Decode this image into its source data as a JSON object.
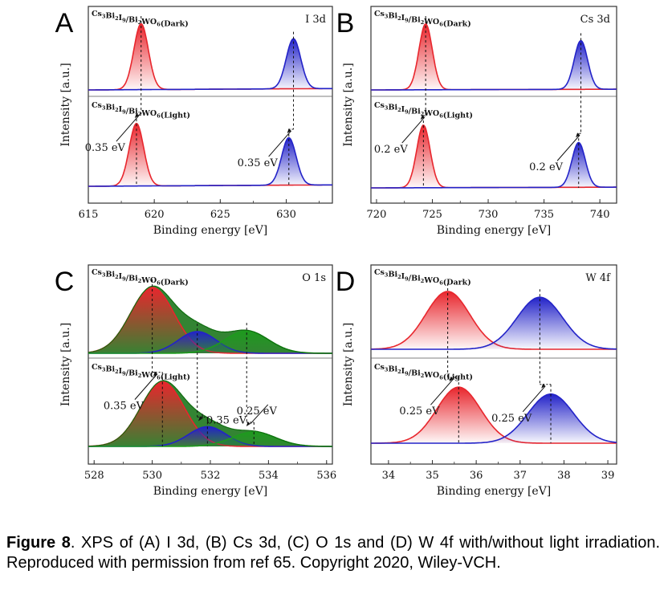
{
  "figure": {
    "caption_label": "Figure 8",
    "caption_text": ". XPS of (A) I 3d, (B) Cs 3d, (C) O 1s and (D) W 4f with/without light irradiation. Reproduced with permission from ref 65. Copyright 2020, Wiley-VCH."
  },
  "colors": {
    "red": "#e8262d",
    "blue": "#2323c8",
    "green": "#1e9a1e",
    "dark_green": "#0f6e0f",
    "axis": "#333333"
  },
  "chart_data": [
    {
      "panel": "A",
      "type": "line",
      "element_label": "I 3d",
      "xlabel": "Binding energy [eV]",
      "ylabel": "Intensity [a.u.]",
      "xlim": [
        615,
        633.5
      ],
      "xticks": [
        615,
        620,
        625,
        630
      ],
      "top_label": "Cs3Bi2I9/Bi2WO6(Dark)",
      "bottom_label": "Cs3Bi2I9/Bi2WO6(Light)",
      "series": [
        {
          "trace": "dark",
          "peaks": [
            {
              "center": 619.0,
              "height": 1.0,
              "width": 0.55,
              "color": "red"
            },
            {
              "center": 630.55,
              "height": 0.76,
              "width": 0.55,
              "color": "blue"
            }
          ],
          "baseline_slope": 0.06
        },
        {
          "trace": "light",
          "peaks": [
            {
              "center": 618.65,
              "height": 0.95,
              "width": 0.55,
              "color": "red"
            },
            {
              "center": 630.2,
              "height": 0.72,
              "width": 0.55,
              "color": "blue"
            }
          ],
          "baseline_slope": 0.06
        }
      ],
      "annotations": [
        "0.35 eV",
        "0.35 eV"
      ]
    },
    {
      "panel": "B",
      "type": "line",
      "element_label": "Cs 3d",
      "xlabel": "Binding energy [eV]",
      "ylabel": "Intensity [a.u.]",
      "xlim": [
        719.5,
        741.5
      ],
      "xticks": [
        720,
        725,
        730,
        735,
        740
      ],
      "top_label": "Cs3Bi2I9/Bi2WO6(Dark)",
      "bottom_label": "Cs3Bi2I9/Bi2WO6(Light)",
      "series": [
        {
          "trace": "dark",
          "peaks": [
            {
              "center": 724.4,
              "height": 1.0,
              "width": 0.6,
              "color": "red"
            },
            {
              "center": 738.3,
              "height": 0.74,
              "width": 0.6,
              "color": "blue"
            }
          ],
          "baseline_slope": 0.03
        },
        {
          "trace": "light",
          "peaks": [
            {
              "center": 724.2,
              "height": 0.95,
              "width": 0.6,
              "color": "red"
            },
            {
              "center": 738.1,
              "height": 0.68,
              "width": 0.6,
              "color": "blue"
            }
          ],
          "baseline_slope": 0.03
        }
      ],
      "annotations": [
        "0.2 eV",
        "0.2 eV"
      ]
    },
    {
      "panel": "C",
      "type": "area",
      "element_label": "O 1s",
      "xlabel": "Binding energy [eV]",
      "ylabel": "Intensity [a.u.]",
      "xlim": [
        527.8,
        536.2
      ],
      "xticks": [
        528,
        530,
        532,
        534,
        536
      ],
      "top_label": "Cs3Bi2I9/Bi2WO6(Dark)",
      "bottom_label": "Cs3Bi2I9/Bi2WO6(Light)",
      "series": [
        {
          "trace": "dark",
          "peaks": [
            {
              "center": 530.0,
              "height": 1.0,
              "width": 0.75,
              "color": "red"
            },
            {
              "center": 531.55,
              "height": 0.33,
              "width": 0.65,
              "color": "blue"
            },
            {
              "center": 533.25,
              "height": 0.34,
              "width": 0.75,
              "color": "green"
            }
          ]
        },
        {
          "trace": "light",
          "peaks": [
            {
              "center": 530.35,
              "height": 0.98,
              "width": 0.75,
              "color": "red"
            },
            {
              "center": 531.9,
              "height": 0.3,
              "width": 0.65,
              "color": "blue"
            },
            {
              "center": 533.5,
              "height": 0.22,
              "width": 0.75,
              "color": "green"
            }
          ]
        }
      ],
      "annotations": [
        "0.35 eV",
        "0.35 eV",
        "0.25 eV"
      ]
    },
    {
      "panel": "D",
      "type": "area",
      "element_label": "W 4f",
      "xlabel": "Binding energy [eV]",
      "ylabel": "Intensity [a.u.]",
      "xlim": [
        33.6,
        39.2
      ],
      "xticks": [
        34,
        35,
        36,
        37,
        38,
        39
      ],
      "top_label": "Cs3Bi2I9/Bi2WO6(Dark)",
      "bottom_label": "Cs3Bi2I9/Bi2WO6(Light)",
      "series": [
        {
          "trace": "dark",
          "peaks": [
            {
              "center": 35.35,
              "height": 1.0,
              "width": 0.5,
              "color": "red"
            },
            {
              "center": 37.45,
              "height": 0.9,
              "width": 0.52,
              "color": "blue"
            }
          ]
        },
        {
          "trace": "light",
          "peaks": [
            {
              "center": 35.6,
              "height": 0.97,
              "width": 0.5,
              "color": "red"
            },
            {
              "center": 37.7,
              "height": 0.85,
              "width": 0.52,
              "color": "blue"
            }
          ]
        }
      ],
      "annotations": [
        "0.25 eV",
        "0.25 eV"
      ]
    }
  ]
}
